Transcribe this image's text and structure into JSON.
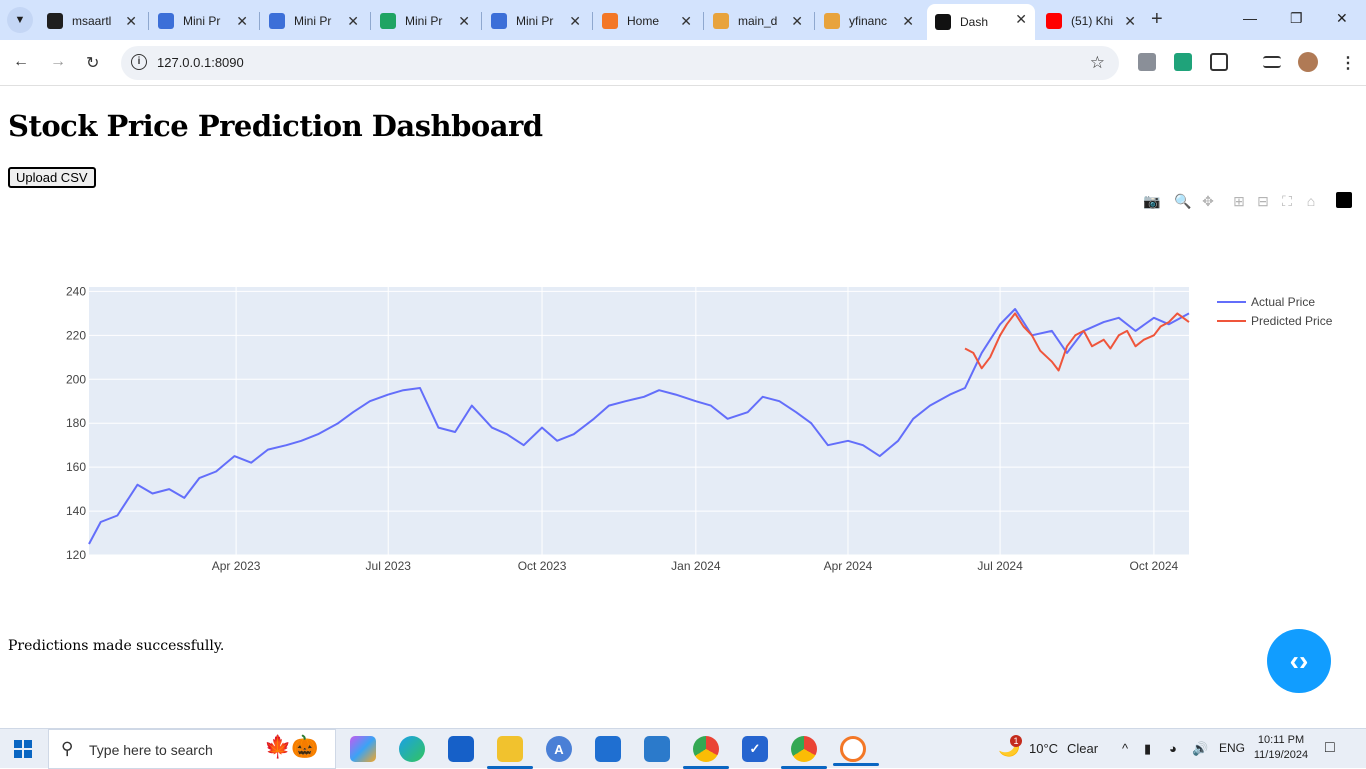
{
  "browser": {
    "tabs": [
      {
        "title": "msaartl",
        "icon": "github-icon",
        "color": "#1f1f1f"
      },
      {
        "title": "Mini Pr",
        "icon": "google-sites-icon",
        "color": "#3c6fd8"
      },
      {
        "title": "Mini Pr",
        "icon": "google-sites-icon",
        "color": "#3c6fd8"
      },
      {
        "title": "Mini Pr",
        "icon": "google-drive-icon",
        "color": "#1fa463"
      },
      {
        "title": "Mini Pr",
        "icon": "google-sites-icon",
        "color": "#3c6fd8"
      },
      {
        "title": "Home",
        "icon": "jupyter-icon",
        "color": "#f37726"
      },
      {
        "title": "main_d",
        "icon": "notebook-icon",
        "color": "#e8a33d"
      },
      {
        "title": "yfinanc",
        "icon": "notebook-icon",
        "color": "#e8a33d"
      },
      {
        "title": "Dash",
        "icon": "plotly-dash-icon",
        "color": "#111111",
        "active": true
      },
      {
        "title": "(51) Khi",
        "icon": "youtube-icon",
        "color": "#ff0000"
      }
    ],
    "url": "127.0.0.1:8090"
  },
  "page": {
    "title": "Stock Price Prediction Dashboard",
    "upload_label": "Upload CSV",
    "status": "Predictions made successfully."
  },
  "chart_data": {
    "type": "line",
    "title": "",
    "xlabel": "",
    "ylabel": "",
    "x_ticks": [
      "Apr 2023",
      "Jul 2023",
      "Oct 2023",
      "Jan 2024",
      "Apr 2024",
      "Jul 2024",
      "Oct 2024"
    ],
    "y_ticks": [
      "120",
      "140",
      "160",
      "180",
      "200",
      "220",
      "240"
    ],
    "xlim": [
      "2023-01-03",
      "2024-10-22"
    ],
    "ylim": [
      120,
      242
    ],
    "legend_position": "right",
    "grid": true,
    "series": [
      {
        "name": "Actual Price",
        "color": "#636efa",
        "x": [
          "2023-01-03",
          "2023-01-10",
          "2023-01-20",
          "2023-02-01",
          "2023-02-10",
          "2023-02-20",
          "2023-03-01",
          "2023-03-10",
          "2023-03-20",
          "2023-03-31",
          "2023-04-10",
          "2023-04-20",
          "2023-05-01",
          "2023-05-10",
          "2023-05-20",
          "2023-06-01",
          "2023-06-10",
          "2023-06-20",
          "2023-07-01",
          "2023-07-10",
          "2023-07-20",
          "2023-07-31",
          "2023-08-10",
          "2023-08-20",
          "2023-09-01",
          "2023-09-10",
          "2023-09-20",
          "2023-10-01",
          "2023-10-10",
          "2023-10-20",
          "2023-11-01",
          "2023-11-10",
          "2023-11-20",
          "2023-12-01",
          "2023-12-10",
          "2023-12-20",
          "2024-01-01",
          "2024-01-10",
          "2024-01-20",
          "2024-02-01",
          "2024-02-10",
          "2024-02-20",
          "2024-03-01",
          "2024-03-10",
          "2024-03-20",
          "2024-04-01",
          "2024-04-10",
          "2024-04-20",
          "2024-05-01",
          "2024-05-10",
          "2024-05-20",
          "2024-06-01",
          "2024-06-10",
          "2024-06-20",
          "2024-07-01",
          "2024-07-10",
          "2024-07-20",
          "2024-08-01",
          "2024-08-10",
          "2024-08-20",
          "2024-09-01",
          "2024-09-10",
          "2024-09-20",
          "2024-10-01",
          "2024-10-10",
          "2024-10-22"
        ],
        "y": [
          125,
          135,
          138,
          152,
          148,
          150,
          146,
          155,
          158,
          165,
          162,
          168,
          170,
          172,
          175,
          180,
          185,
          190,
          193,
          195,
          196,
          178,
          176,
          188,
          178,
          175,
          170,
          178,
          172,
          175,
          182,
          188,
          190,
          192,
          195,
          193,
          190,
          188,
          182,
          185,
          192,
          190,
          185,
          180,
          170,
          172,
          170,
          165,
          172,
          182,
          188,
          193,
          196,
          212,
          225,
          232,
          220,
          222,
          212,
          222,
          226,
          228,
          222,
          228,
          225,
          230
        ]
      },
      {
        "name": "Predicted Price",
        "color": "#ef553b",
        "x": [
          "2024-06-10",
          "2024-06-15",
          "2024-06-20",
          "2024-06-25",
          "2024-07-01",
          "2024-07-05",
          "2024-07-10",
          "2024-07-15",
          "2024-07-20",
          "2024-07-25",
          "2024-08-01",
          "2024-08-05",
          "2024-08-10",
          "2024-08-15",
          "2024-08-20",
          "2024-08-25",
          "2024-09-01",
          "2024-09-05",
          "2024-09-10",
          "2024-09-15",
          "2024-09-20",
          "2024-09-25",
          "2024-10-01",
          "2024-10-05",
          "2024-10-10",
          "2024-10-15",
          "2024-10-22"
        ],
        "y": [
          214,
          212,
          205,
          210,
          220,
          225,
          230,
          224,
          220,
          213,
          208,
          204,
          215,
          220,
          222,
          215,
          218,
          214,
          220,
          222,
          215,
          218,
          220,
          224,
          226,
          230,
          226
        ]
      }
    ]
  },
  "taskbar": {
    "search_placeholder": "Type here to search",
    "weather_temp": "10°C",
    "weather_text": "Clear",
    "language": "ENG",
    "time": "10:11 PM",
    "date": "11/19/2024",
    "weather_badge": "1"
  }
}
